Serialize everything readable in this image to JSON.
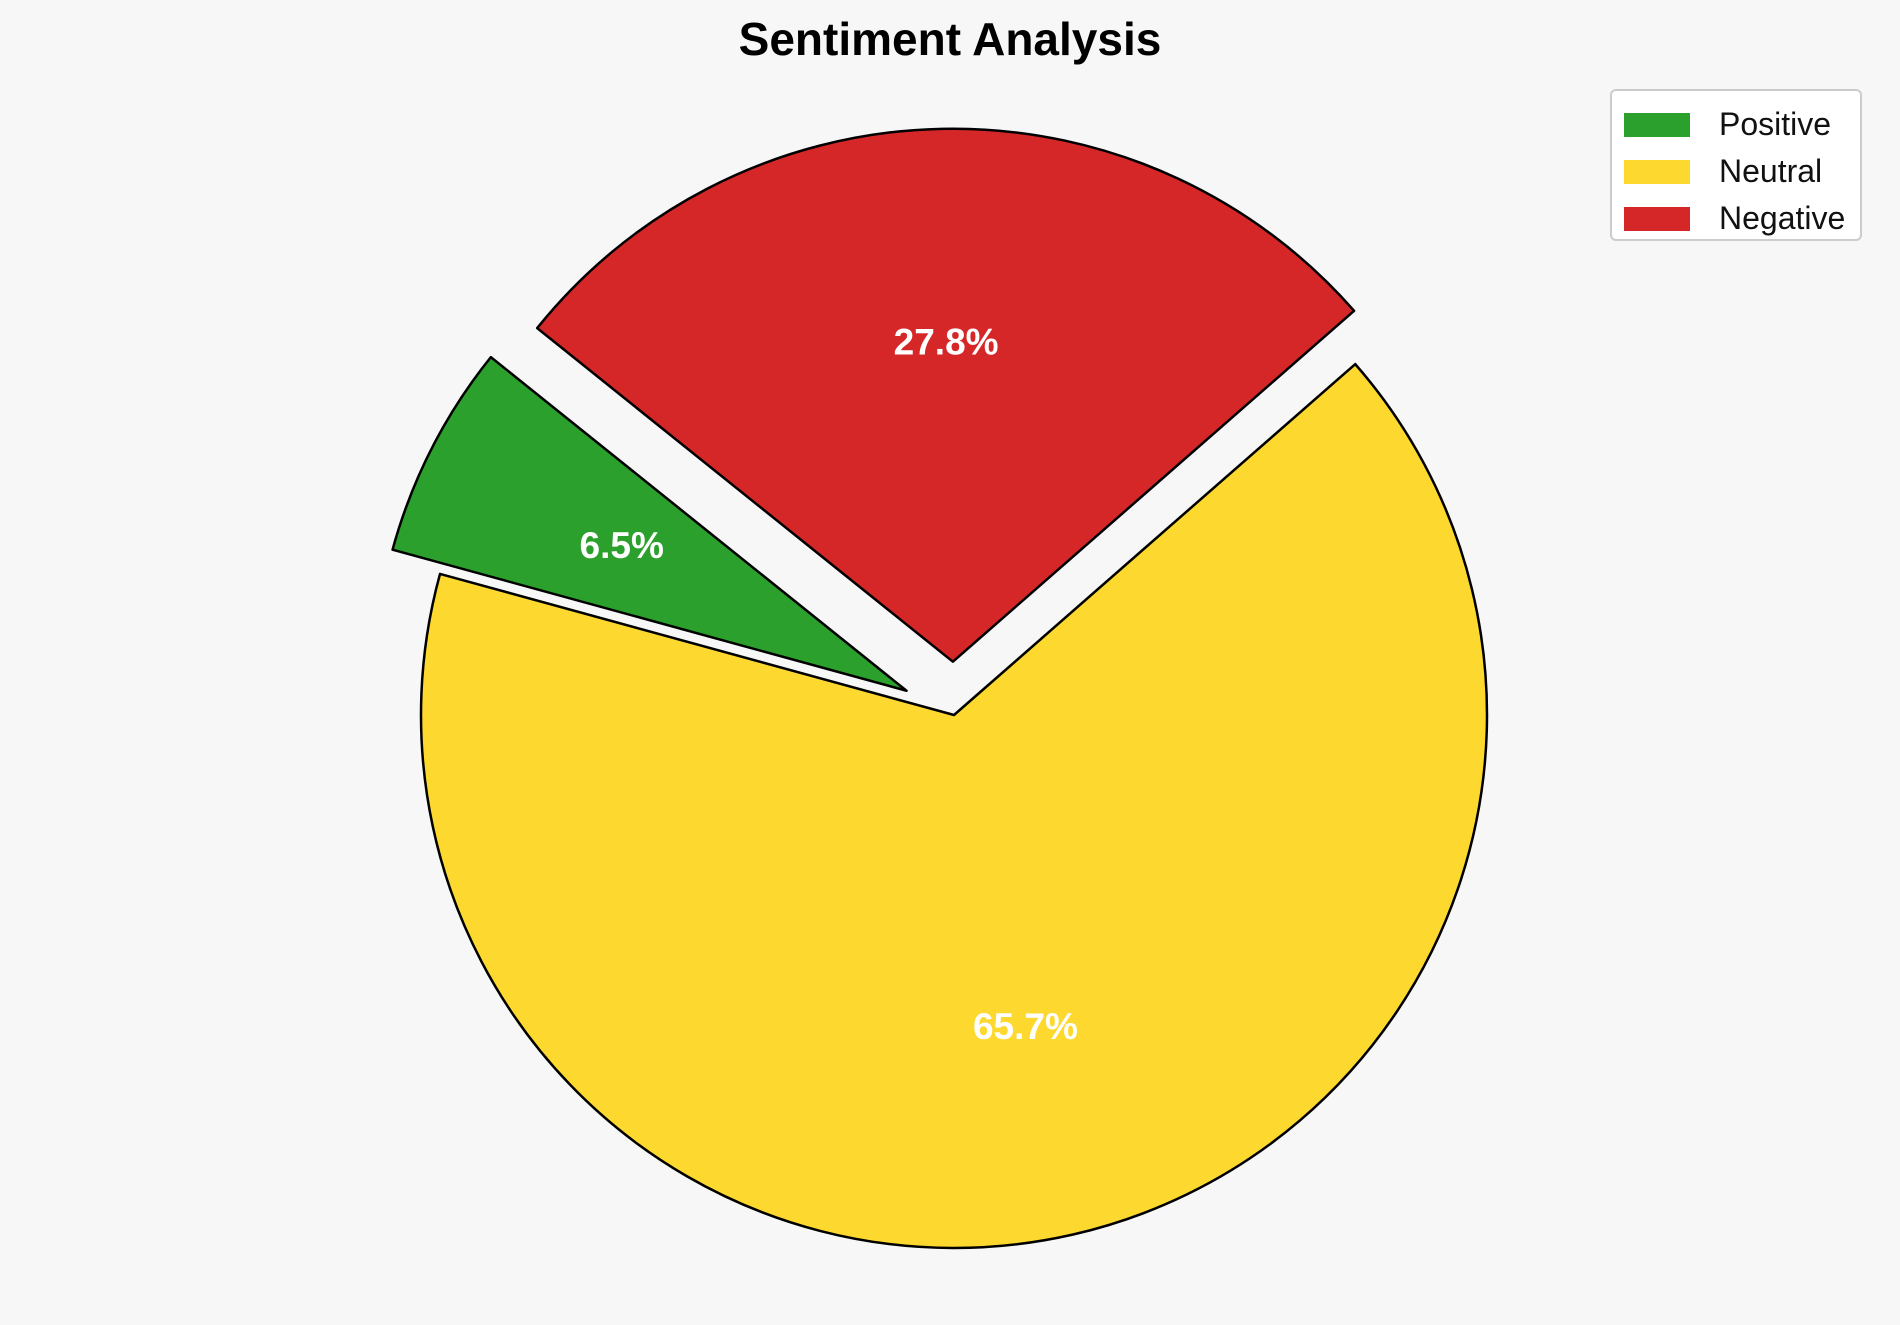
{
  "chart_data": {
    "type": "pie",
    "title": "Sentiment Analysis",
    "categories": [
      "Positive",
      "Neutral",
      "Negative"
    ],
    "values": [
      6.5,
      65.7,
      27.8
    ],
    "value_labels": [
      "6.5%",
      "65.7%",
      "27.8%"
    ],
    "colors": [
      "#2ca02c",
      "#fdd930",
      "#d62728"
    ],
    "exploded": [
      true,
      false,
      true
    ],
    "edge_color": "#000000",
    "label_color": "#ffffff",
    "legend_position": "top-right"
  },
  "legend": {
    "items": [
      {
        "label": "Positive",
        "color": "#2ca02c"
      },
      {
        "label": "Neutral",
        "color": "#fdd930"
      },
      {
        "label": "Negative",
        "color": "#d62728"
      }
    ]
  },
  "background_color": "#f7f7f7"
}
